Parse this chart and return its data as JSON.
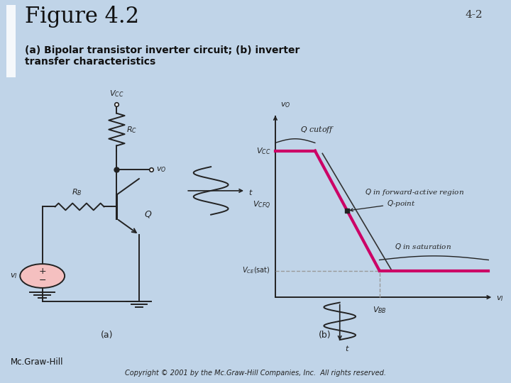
{
  "bg_color": "#c0d4e8",
  "title": "Figure 4.2",
  "subtitle": "(a) Bipolar transistor inverter circuit; (b) inverter\ntransfer characteristics",
  "page_label": "4-2",
  "footer_left": "Mc.Graw-Hill",
  "footer_right": "Copyright © 2001 by the Mc.Graw-Hill Companies, Inc.  All rights reserved.",
  "panel_bg": "#f5f5f0",
  "transfer_curve_color": "#cc0066",
  "black_line_color": "#222222",
  "dashed_color": "#888888",
  "title_color": "#111111",
  "subtitle_color": "#111111",
  "bracket_color": "#b0c4d8"
}
